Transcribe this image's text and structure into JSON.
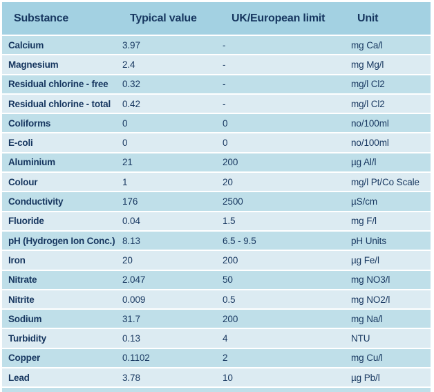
{
  "colors": {
    "header_bg": "#a3d1e2",
    "row_medium": "#bfdfe9",
    "row_light": "#dcebf2",
    "text": "#16365f",
    "separator": "#ffffff"
  },
  "table": {
    "headers": {
      "substance": "Substance",
      "typical_value": "Typical value",
      "limit": "UK/European limit",
      "unit": "Unit"
    },
    "rows": [
      {
        "substance": "Calcium",
        "typical_value": "3.97",
        "limit": "-",
        "unit": "mg Ca/l"
      },
      {
        "substance": "Magnesium",
        "typical_value": "2.4",
        "limit": "-",
        "unit": "mg Mg/l"
      },
      {
        "substance": "Residual chlorine - free",
        "typical_value": "0.32",
        "limit": "-",
        "unit": "mg/l Cl2"
      },
      {
        "substance": "Residual chlorine - total",
        "typical_value": "0.42",
        "limit": "-",
        "unit": "mg/l Cl2"
      },
      {
        "substance": "Coliforms",
        "typical_value": "0",
        "limit": "0",
        "unit": "no/100ml"
      },
      {
        "substance": "E-coli",
        "typical_value": "0",
        "limit": "0",
        "unit": "no/100ml"
      },
      {
        "substance": "Aluminium",
        "typical_value": "21",
        "limit": "200",
        "unit": "µg Al/l"
      },
      {
        "substance": "Colour",
        "typical_value": "1",
        "limit": "20",
        "unit": "mg/l Pt/Co Scale"
      },
      {
        "substance": "Conductivity",
        "typical_value": "176",
        "limit": "2500",
        "unit": "µS/cm"
      },
      {
        "substance": "Fluoride",
        "typical_value": "0.04",
        "limit": "1.5",
        "unit": "mg F/l"
      },
      {
        "substance": "pH (Hydrogen Ion Conc.)",
        "typical_value": "8.13",
        "limit": "6.5 - 9.5",
        "unit": "pH Units"
      },
      {
        "substance": "Iron",
        "typical_value": "20",
        "limit": "200",
        "unit": "µg Fe/l"
      },
      {
        "substance": "Nitrate",
        "typical_value": "2.047",
        "limit": "50",
        "unit": "mg NO3/l"
      },
      {
        "substance": "Nitrite",
        "typical_value": "0.009",
        "limit": "0.5",
        "unit": "mg NO2/l"
      },
      {
        "substance": "Sodium",
        "typical_value": "31.7",
        "limit": "200",
        "unit": "mg Na/l"
      },
      {
        "substance": "Turbidity",
        "typical_value": "0.13",
        "limit": "4",
        "unit": "NTU"
      },
      {
        "substance": "Copper",
        "typical_value": "0.1102",
        "limit": "2",
        "unit": "mg Cu/l"
      },
      {
        "substance": "Lead",
        "typical_value": "3.78",
        "limit": "10",
        "unit": "µg Pb/l"
      }
    ]
  }
}
